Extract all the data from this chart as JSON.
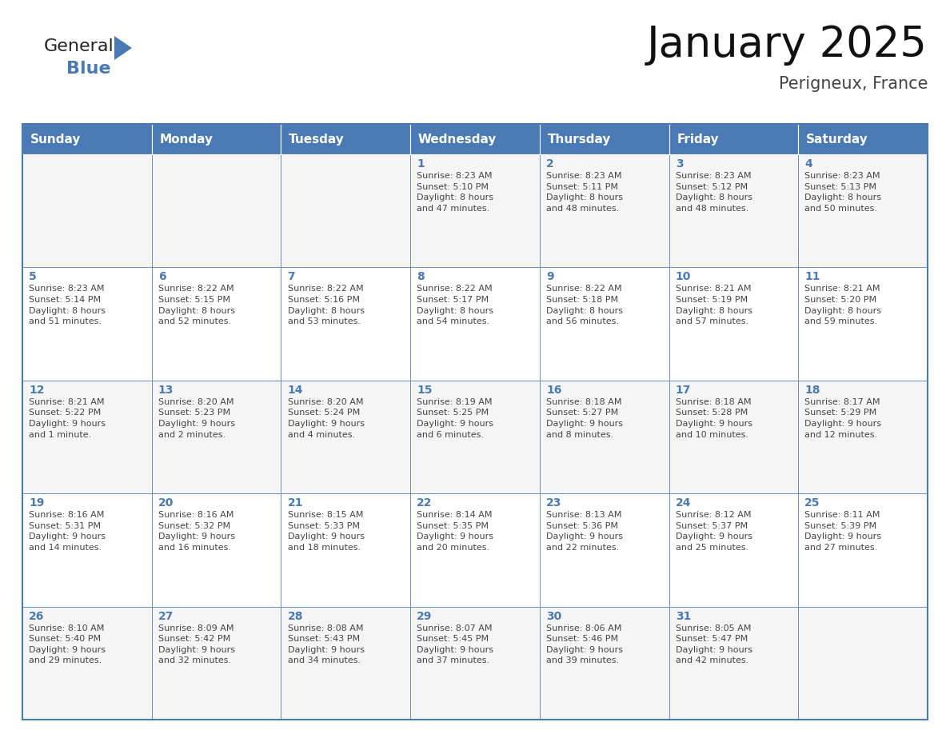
{
  "title": "January 2025",
  "subtitle": "Perigneux, France",
  "header_color": "#4a7ab5",
  "header_text_color": "#FFFFFF",
  "row_bg_even": "#f5f5f5",
  "row_bg_odd": "#ffffff",
  "border_color": "#4a7ab5",
  "day_num_color": "#4a7ab5",
  "text_color": "#444444",
  "days_of_week": [
    "Sunday",
    "Monday",
    "Tuesday",
    "Wednesday",
    "Thursday",
    "Friday",
    "Saturday"
  ],
  "weeks": [
    [
      {
        "day": "",
        "info": ""
      },
      {
        "day": "",
        "info": ""
      },
      {
        "day": "",
        "info": ""
      },
      {
        "day": "1",
        "info": "Sunrise: 8:23 AM\nSunset: 5:10 PM\nDaylight: 8 hours\nand 47 minutes."
      },
      {
        "day": "2",
        "info": "Sunrise: 8:23 AM\nSunset: 5:11 PM\nDaylight: 8 hours\nand 48 minutes."
      },
      {
        "day": "3",
        "info": "Sunrise: 8:23 AM\nSunset: 5:12 PM\nDaylight: 8 hours\nand 48 minutes."
      },
      {
        "day": "4",
        "info": "Sunrise: 8:23 AM\nSunset: 5:13 PM\nDaylight: 8 hours\nand 50 minutes."
      }
    ],
    [
      {
        "day": "5",
        "info": "Sunrise: 8:23 AM\nSunset: 5:14 PM\nDaylight: 8 hours\nand 51 minutes."
      },
      {
        "day": "6",
        "info": "Sunrise: 8:22 AM\nSunset: 5:15 PM\nDaylight: 8 hours\nand 52 minutes."
      },
      {
        "day": "7",
        "info": "Sunrise: 8:22 AM\nSunset: 5:16 PM\nDaylight: 8 hours\nand 53 minutes."
      },
      {
        "day": "8",
        "info": "Sunrise: 8:22 AM\nSunset: 5:17 PM\nDaylight: 8 hours\nand 54 minutes."
      },
      {
        "day": "9",
        "info": "Sunrise: 8:22 AM\nSunset: 5:18 PM\nDaylight: 8 hours\nand 56 minutes."
      },
      {
        "day": "10",
        "info": "Sunrise: 8:21 AM\nSunset: 5:19 PM\nDaylight: 8 hours\nand 57 minutes."
      },
      {
        "day": "11",
        "info": "Sunrise: 8:21 AM\nSunset: 5:20 PM\nDaylight: 8 hours\nand 59 minutes."
      }
    ],
    [
      {
        "day": "12",
        "info": "Sunrise: 8:21 AM\nSunset: 5:22 PM\nDaylight: 9 hours\nand 1 minute."
      },
      {
        "day": "13",
        "info": "Sunrise: 8:20 AM\nSunset: 5:23 PM\nDaylight: 9 hours\nand 2 minutes."
      },
      {
        "day": "14",
        "info": "Sunrise: 8:20 AM\nSunset: 5:24 PM\nDaylight: 9 hours\nand 4 minutes."
      },
      {
        "day": "15",
        "info": "Sunrise: 8:19 AM\nSunset: 5:25 PM\nDaylight: 9 hours\nand 6 minutes."
      },
      {
        "day": "16",
        "info": "Sunrise: 8:18 AM\nSunset: 5:27 PM\nDaylight: 9 hours\nand 8 minutes."
      },
      {
        "day": "17",
        "info": "Sunrise: 8:18 AM\nSunset: 5:28 PM\nDaylight: 9 hours\nand 10 minutes."
      },
      {
        "day": "18",
        "info": "Sunrise: 8:17 AM\nSunset: 5:29 PM\nDaylight: 9 hours\nand 12 minutes."
      }
    ],
    [
      {
        "day": "19",
        "info": "Sunrise: 8:16 AM\nSunset: 5:31 PM\nDaylight: 9 hours\nand 14 minutes."
      },
      {
        "day": "20",
        "info": "Sunrise: 8:16 AM\nSunset: 5:32 PM\nDaylight: 9 hours\nand 16 minutes."
      },
      {
        "day": "21",
        "info": "Sunrise: 8:15 AM\nSunset: 5:33 PM\nDaylight: 9 hours\nand 18 minutes."
      },
      {
        "day": "22",
        "info": "Sunrise: 8:14 AM\nSunset: 5:35 PM\nDaylight: 9 hours\nand 20 minutes."
      },
      {
        "day": "23",
        "info": "Sunrise: 8:13 AM\nSunset: 5:36 PM\nDaylight: 9 hours\nand 22 minutes."
      },
      {
        "day": "24",
        "info": "Sunrise: 8:12 AM\nSunset: 5:37 PM\nDaylight: 9 hours\nand 25 minutes."
      },
      {
        "day": "25",
        "info": "Sunrise: 8:11 AM\nSunset: 5:39 PM\nDaylight: 9 hours\nand 27 minutes."
      }
    ],
    [
      {
        "day": "26",
        "info": "Sunrise: 8:10 AM\nSunset: 5:40 PM\nDaylight: 9 hours\nand 29 minutes."
      },
      {
        "day": "27",
        "info": "Sunrise: 8:09 AM\nSunset: 5:42 PM\nDaylight: 9 hours\nand 32 minutes."
      },
      {
        "day": "28",
        "info": "Sunrise: 8:08 AM\nSunset: 5:43 PM\nDaylight: 9 hours\nand 34 minutes."
      },
      {
        "day": "29",
        "info": "Sunrise: 8:07 AM\nSunset: 5:45 PM\nDaylight: 9 hours\nand 37 minutes."
      },
      {
        "day": "30",
        "info": "Sunrise: 8:06 AM\nSunset: 5:46 PM\nDaylight: 9 hours\nand 39 minutes."
      },
      {
        "day": "31",
        "info": "Sunrise: 8:05 AM\nSunset: 5:47 PM\nDaylight: 9 hours\nand 42 minutes."
      },
      {
        "day": "",
        "info": ""
      }
    ]
  ],
  "logo_text_general": "General",
  "logo_text_blue": "Blue",
  "logo_color_general": "#222222",
  "logo_color_blue": "#4a7ab5",
  "logo_triangle_color": "#4a7ab5",
  "title_fontsize": 38,
  "subtitle_fontsize": 15,
  "header_fontsize": 11,
  "day_num_fontsize": 10,
  "cell_text_fontsize": 8
}
